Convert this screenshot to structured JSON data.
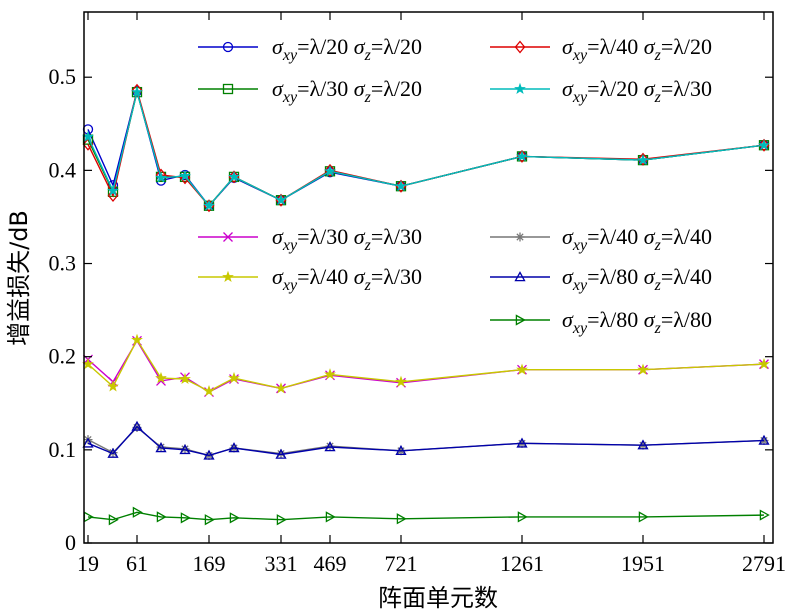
{
  "chart_data": {
    "type": "line",
    "xlabel": "阵面单元数",
    "ylabel": "增益损失/dB",
    "x_tick_labels": [
      "19",
      "61",
      "169",
      "331",
      "469",
      "721",
      "1261",
      "1951",
      "2791"
    ],
    "y_tick_labels": [
      "0",
      "0.1",
      "0.2",
      "0.3",
      "0.4",
      "0.5"
    ],
    "ylim": [
      0,
      0.57
    ],
    "grid": false,
    "legend_placement": "inside, three groups",
    "series": [
      {
        "name": "σxy=λ/20 σz=λ/20",
        "color": "#0000cc",
        "marker": "circle",
        "values": [
          0.444,
          0.384,
          0.485,
          0.389,
          0.395,
          0.362,
          0.392,
          0.368,
          0.398,
          0.383,
          0.415,
          0.411,
          0.427
        ]
      },
      {
        "name": "σxy=λ/30 σz=λ/20",
        "color": "#008000",
        "marker": "square",
        "values": [
          0.433,
          0.377,
          0.484,
          0.393,
          0.393,
          0.362,
          0.393,
          0.368,
          0.399,
          0.383,
          0.415,
          0.411,
          0.427
        ]
      },
      {
        "name": "σxy=λ/40 σz=λ/20",
        "color": "#dd0000",
        "marker": "diamond",
        "values": [
          0.428,
          0.373,
          0.486,
          0.395,
          0.392,
          0.362,
          0.393,
          0.368,
          0.4,
          0.383,
          0.415,
          0.412,
          0.427
        ]
      },
      {
        "name": "σxy=λ/20 σz=λ/30",
        "color": "#00bbbb",
        "marker": "star",
        "values": [
          0.436,
          0.378,
          0.484,
          0.392,
          0.394,
          0.362,
          0.393,
          0.368,
          0.399,
          0.383,
          0.415,
          0.411,
          0.427
        ]
      },
      {
        "name": "σxy=λ/30 σz=λ/30",
        "color": "#cc00cc",
        "marker": "x",
        "values": [
          0.197,
          0.173,
          0.217,
          0.174,
          0.178,
          0.162,
          0.176,
          0.166,
          0.18,
          0.172,
          0.186,
          0.186,
          0.192
        ]
      },
      {
        "name": "σxy=λ/40 σz=λ/30",
        "color": "#c8c800",
        "marker": "star",
        "values": [
          0.192,
          0.168,
          0.218,
          0.177,
          0.176,
          0.163,
          0.177,
          0.166,
          0.181,
          0.173,
          0.186,
          0.186,
          0.192
        ]
      },
      {
        "name": "σxy=λ/40 σz=λ/40",
        "color": "#777777",
        "marker": "asterisk",
        "values": [
          0.111,
          0.097,
          0.124,
          0.103,
          0.101,
          0.094,
          0.102,
          0.096,
          0.104,
          0.099,
          0.107,
          0.105,
          0.11
        ]
      },
      {
        "name": "σxy=λ/80 σz=λ/40",
        "color": "#0000aa",
        "marker": "triangle-up",
        "values": [
          0.107,
          0.096,
          0.125,
          0.102,
          0.1,
          0.094,
          0.102,
          0.095,
          0.103,
          0.099,
          0.107,
          0.105,
          0.11
        ]
      },
      {
        "name": "σxy=λ/80 σz=λ/80",
        "color": "#008000",
        "marker": "triangle-right",
        "values": [
          0.028,
          0.025,
          0.033,
          0.028,
          0.027,
          0.025,
          0.027,
          0.025,
          0.028,
          0.026,
          0.028,
          0.028,
          0.03
        ]
      }
    ],
    "legend_groups": [
      [
        {
          "s1": "xy",
          "v1": "=λ/20",
          "s2": "z",
          "v2": "=λ/20"
        },
        {
          "s1": "xy",
          "v1": "=λ/30",
          "s2": "z",
          "v2": "=λ/20"
        },
        {
          "s1": "xy",
          "v1": "=λ/40",
          "s2": "z",
          "v2": "=λ/20"
        },
        {
          "s1": "xy",
          "v1": "=λ/20",
          "s2": "z",
          "v2": "=λ/30"
        }
      ],
      [
        {
          "s1": "xy",
          "v1": "=λ/30",
          "s2": "z",
          "v2": "=λ/30"
        },
        {
          "s1": "xy",
          "v1": "=λ/40",
          "s2": "z",
          "v2": "=λ/30"
        }
      ],
      [
        {
          "s1": "xy",
          "v1": "=λ/40",
          "s2": "z",
          "v2": "=λ/40"
        },
        {
          "s1": "xy",
          "v1": "=λ/80",
          "s2": "z",
          "v2": "=λ/40"
        },
        {
          "s1": "xy",
          "v1": "=λ/80",
          "s2": "z",
          "v2": "=λ/80"
        }
      ]
    ]
  }
}
